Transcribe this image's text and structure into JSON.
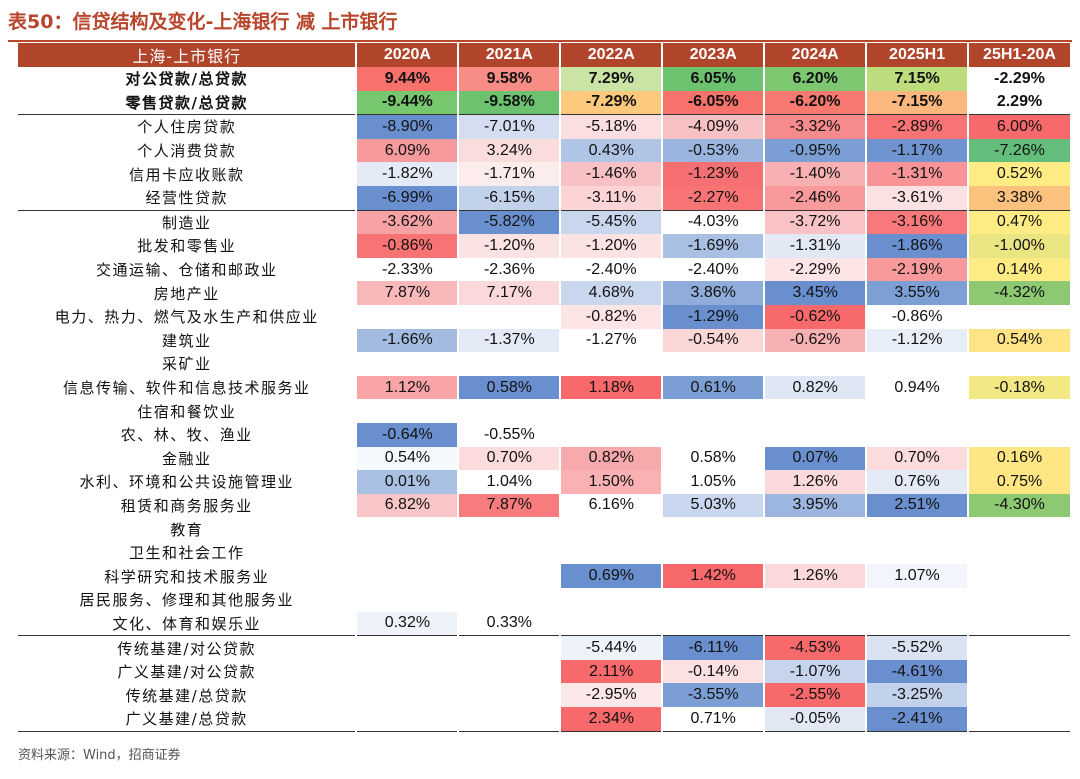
{
  "title": "表50：信贷结构及变化-上海银行 减 上市银行",
  "table": {
    "headers": [
      "上海-上市银行",
      "2020A",
      "2021A",
      "2022A",
      "2023A",
      "2024A",
      "2025H1",
      "25H1-20A"
    ],
    "rows": [
      {
        "label": "对公贷款/总贷款",
        "values": [
          "9.44%",
          "9.58%",
          "7.29%",
          "6.05%",
          "6.20%",
          "7.15%",
          "-2.29%"
        ],
        "colors": [
          "#f8726c",
          "#f88d85",
          "#c9e4a4",
          "#6dc26f",
          "#7ec771",
          "#bddc7c",
          "#ffffff"
        ],
        "bold": true
      },
      {
        "label": "零售贷款/总贷款",
        "values": [
          "-9.44%",
          "-9.58%",
          "-7.29%",
          "-6.05%",
          "-6.20%",
          "-7.15%",
          "2.29%"
        ],
        "colors": [
          "#77c76e",
          "#6dc26f",
          "#fdc97c",
          "#f8726c",
          "#f8796f",
          "#fbb77d",
          "#ffffff"
        ],
        "bold": true
      },
      {
        "label": "个人住房贷款",
        "values": [
          "-8.90%",
          "-7.01%",
          "-5.18%",
          "-4.09%",
          "-3.32%",
          "-2.89%",
          "6.00%"
        ],
        "colors": [
          "#6a8fce",
          "#d4def0",
          "#fbdedf",
          "#f8c1c3",
          "#f68a8d",
          "#f87374",
          "#f8696b"
        ],
        "sep": true
      },
      {
        "label": "个人消费贷款",
        "values": [
          "6.09%",
          "3.24%",
          "0.43%",
          "-0.53%",
          "-0.95%",
          "-1.17%",
          "-7.26%"
        ],
        "colors": [
          "#f69a9d",
          "#fbdcdd",
          "#b0c5e6",
          "#9ab4de",
          "#7b9fd4",
          "#6f94cf",
          "#63be7b"
        ]
      },
      {
        "label": "信用卡应收账款",
        "values": [
          "-1.82%",
          "-1.71%",
          "-1.46%",
          "-1.23%",
          "-1.40%",
          "-1.31%",
          "0.52%"
        ],
        "colors": [
          "#e4ebf6",
          "#fcecec",
          "#f8c1c3",
          "#f66f73",
          "#f9b0b2",
          "#f89396",
          "#ffeb84"
        ]
      },
      {
        "label": "经营性贷款",
        "values": [
          "-6.99%",
          "-6.15%",
          "-3.11%",
          "-2.27%",
          "-2.46%",
          "-3.61%",
          "3.38%"
        ],
        "colors": [
          "#6a8fce",
          "#c2d2eb",
          "#fdd4d5",
          "#f87374",
          "#f8999c",
          "#fbe1e2",
          "#fcc17c"
        ]
      },
      {
        "label": "制造业",
        "values": [
          "-3.62%",
          "-5.82%",
          "-5.45%",
          "-4.03%",
          "-3.72%",
          "-3.16%",
          "0.47%"
        ],
        "colors": [
          "#f7a3a5",
          "#6a8fce",
          "#c9d7ee",
          "#ffffff",
          "#f9c3c5",
          "#f8797c",
          "#ffeb84"
        ],
        "sep": true
      },
      {
        "label": "批发和零售业",
        "values": [
          "-0.86%",
          "-1.20%",
          "-1.20%",
          "-1.69%",
          "-1.31%",
          "-1.86%",
          "-1.00%"
        ],
        "colors": [
          "#f87374",
          "#fbe3e4",
          "#fbe3e4",
          "#a9bfe3",
          "#e2e9f5",
          "#6a8fce",
          "#e9e583"
        ]
      },
      {
        "label": "交通运输、仓储和邮政业",
        "values": [
          "-2.33%",
          "-2.36%",
          "-2.40%",
          "-2.40%",
          "-2.29%",
          "-2.19%",
          "0.14%"
        ],
        "colors": [
          "#ffffff",
          "#ffffff",
          "#ffffff",
          "#ffffff",
          "#fde4e5",
          "#f8999c",
          "#ffeb84"
        ]
      },
      {
        "label": "房地产业",
        "values": [
          "7.87%",
          "7.17%",
          "4.68%",
          "3.86%",
          "3.45%",
          "3.55%",
          "-4.32%"
        ],
        "colors": [
          "#f9b8ba",
          "#fbd8d9",
          "#c9d7ee",
          "#90acdb",
          "#6a8fce",
          "#7c9fd4",
          "#8dc972"
        ]
      },
      {
        "label": "电力、热力、燃气及水生产和供应业",
        "values": [
          "",
          "",
          "-0.82%",
          "-1.29%",
          "-0.62%",
          "-0.86%",
          ""
        ],
        "colors": [
          "#ffffff",
          "#ffffff",
          "#fde4e5",
          "#6a8fce",
          "#f8696b",
          "#ffffff",
          "#ffffff"
        ]
      },
      {
        "label": "建筑业",
        "values": [
          "-1.66%",
          "-1.37%",
          "-1.27%",
          "-0.54%",
          "-0.62%",
          "-1.12%",
          "0.54%"
        ],
        "colors": [
          "#a3bbe1",
          "#e4ebf6",
          "#ffffff",
          "#fbd6d7",
          "#f8b1b3",
          "#e8eef7",
          "#ffe384"
        ]
      },
      {
        "label": "采矿业",
        "values": [
          "",
          "",
          "",
          "",
          "",
          "",
          ""
        ],
        "colors": [
          "#ffffff",
          "#ffffff",
          "#ffffff",
          "#ffffff",
          "#ffffff",
          "#ffffff",
          "#ffffff"
        ]
      },
      {
        "label": "信息传输、软件和信息技术服务业",
        "values": [
          "1.12%",
          "0.58%",
          "1.18%",
          "0.61%",
          "0.82%",
          "0.94%",
          "-0.18%"
        ],
        "colors": [
          "#f9a4a6",
          "#6a8fce",
          "#f8696b",
          "#7b9fd4",
          "#dfe7f4",
          "#ffffff",
          "#f2e984"
        ]
      },
      {
        "label": "住宿和餐饮业",
        "values": [
          "",
          "",
          "",
          "",
          "",
          "",
          ""
        ],
        "colors": [
          "#ffffff",
          "#ffffff",
          "#ffffff",
          "#ffffff",
          "#ffffff",
          "#ffffff",
          "#ffffff"
        ]
      },
      {
        "label": "农、林、牧、渔业",
        "values": [
          "-0.64%",
          "-0.55%",
          "",
          "",
          "",
          "",
          ""
        ],
        "colors": [
          "#6a8fce",
          "#ffffff",
          "#ffffff",
          "#ffffff",
          "#ffffff",
          "#ffffff",
          "#ffffff"
        ]
      },
      {
        "label": "金融业",
        "values": [
          "0.54%",
          "0.70%",
          "0.82%",
          "0.58%",
          "0.07%",
          "0.70%",
          "0.16%"
        ],
        "colors": [
          "#f5f8fc",
          "#fcdbdc",
          "#f8a9ab",
          "#ffffff",
          "#6a8fce",
          "#fcdbdc",
          "#fde683"
        ]
      },
      {
        "label": "水利、环境和公共设施管理业",
        "values": [
          "0.01%",
          "1.04%",
          "1.50%",
          "1.05%",
          "1.26%",
          "0.76%",
          "0.75%"
        ],
        "colors": [
          "#aac0e3",
          "#ffffff",
          "#f9b1b3",
          "#ffffff",
          "#fcdadb",
          "#e4ebf6",
          "#fde683"
        ]
      },
      {
        "label": "租赁和商务服务业",
        "values": [
          "6.82%",
          "7.87%",
          "6.16%",
          "5.03%",
          "3.95%",
          "2.51%",
          "-4.30%"
        ],
        "colors": [
          "#f9c6c8",
          "#f87b7e",
          "#ffffff",
          "#c9d7ee",
          "#9db6df",
          "#6a8fce",
          "#8dc972"
        ]
      },
      {
        "label": "教育",
        "values": [
          "",
          "",
          "",
          "",
          "",
          "",
          ""
        ],
        "colors": [
          "#ffffff",
          "#ffffff",
          "#ffffff",
          "#ffffff",
          "#ffffff",
          "#ffffff",
          "#ffffff"
        ]
      },
      {
        "label": "卫生和社会工作",
        "values": [
          "",
          "",
          "",
          "",
          "",
          "",
          ""
        ],
        "colors": [
          "#ffffff",
          "#ffffff",
          "#ffffff",
          "#ffffff",
          "#ffffff",
          "#ffffff",
          "#ffffff"
        ]
      },
      {
        "label": "科学研究和技术服务业",
        "values": [
          "",
          "",
          "0.69%",
          "1.42%",
          "1.26%",
          "1.07%",
          ""
        ],
        "colors": [
          "#ffffff",
          "#ffffff",
          "#6a8fce",
          "#f8696b",
          "#fcdadb",
          "#f2f5fb",
          "#ffffff"
        ]
      },
      {
        "label": "居民服务、修理和其他服务业",
        "values": [
          "",
          "",
          "",
          "",
          "",
          "",
          ""
        ],
        "colors": [
          "#ffffff",
          "#ffffff",
          "#ffffff",
          "#ffffff",
          "#ffffff",
          "#ffffff",
          "#ffffff"
        ]
      },
      {
        "label": "文化、体育和娱乐业",
        "values": [
          "0.32%",
          "0.33%",
          "",
          "",
          "",
          "",
          ""
        ],
        "colors": [
          "#eef2f9",
          "#ffffff",
          "#ffffff",
          "#ffffff",
          "#ffffff",
          "#ffffff",
          "#ffffff"
        ]
      },
      {
        "label": "传统基建/对公贷款",
        "values": [
          "",
          "",
          "-5.44%",
          "-6.11%",
          "-4.53%",
          "-5.52%",
          ""
        ],
        "colors": [
          "#ffffff",
          "#ffffff",
          "#eef2f9",
          "#6a8fce",
          "#f8696b",
          "#d9e3f2",
          "#ffffff"
        ],
        "sep": true
      },
      {
        "label": "广义基建/对公贷款",
        "values": [
          "",
          "",
          "2.11%",
          "-0.14%",
          "-1.07%",
          "-4.61%",
          ""
        ],
        "colors": [
          "#ffffff",
          "#ffffff",
          "#f8696b",
          "#fbe1e2",
          "#c6d4ec",
          "#6a8fce",
          "#ffffff"
        ]
      },
      {
        "label": "传统基建/总贷款",
        "values": [
          "",
          "",
          "-2.95%",
          "-3.55%",
          "-2.55%",
          "-3.25%",
          ""
        ],
        "colors": [
          "#ffffff",
          "#ffffff",
          "#fde8e9",
          "#7b9fd4",
          "#f8696b",
          "#c2d2eb",
          "#ffffff"
        ]
      },
      {
        "label": "广义基建/总贷款",
        "values": [
          "",
          "",
          "2.34%",
          "0.71%",
          "-0.05%",
          "-2.41%",
          ""
        ],
        "colors": [
          "#ffffff",
          "#ffffff",
          "#f8696b",
          "#ffffff",
          "#e2e9f5",
          "#6a8fce",
          "#ffffff"
        ],
        "last": true
      }
    ]
  },
  "source": "资料来源：Wind，招商证券"
}
